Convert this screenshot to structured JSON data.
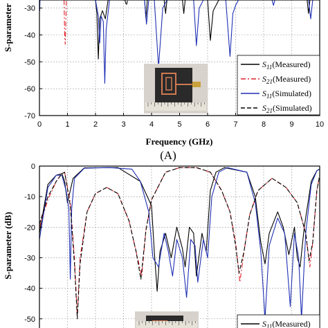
{
  "chart_data": [
    {
      "type": "line",
      "panel_label": "(A)",
      "xlabel": "Frequency (GHz)",
      "ylabel": "S-parameter",
      "xlim": [
        0,
        10
      ],
      "ylim": [
        -70,
        -27
      ],
      "xticks": [
        "0",
        "1",
        "2",
        "3",
        "4",
        "5",
        "6",
        "7",
        "8",
        "9",
        "10"
      ],
      "yticks": [
        {
          "v": -30,
          "label": "-30"
        },
        {
          "v": -40,
          "label": "-40"
        },
        {
          "v": -50,
          "label": "-50"
        },
        {
          "v": -60,
          "label": "-60"
        },
        {
          "v": -70,
          "label": "-70"
        }
      ],
      "grid": true,
      "legend_position": "bottom-right",
      "legend": [
        {
          "sym": "S",
          "sub": "11",
          "rest": "(Measured)",
          "color": "#000000",
          "dash": "solid"
        },
        {
          "sym": "S",
          "sub": "21",
          "rest": "(Measured)",
          "color": "#e0202a",
          "dash": "dashdot"
        },
        {
          "sym": "S",
          "sub": "11",
          "rest": "(Simulated)",
          "color": "#1e2fb3",
          "dash": "solid"
        },
        {
          "sym": "S",
          "sub": "21",
          "rest": "(Simulated)",
          "color": "#000000",
          "dash": "dash"
        }
      ],
      "series": [
        {
          "key": "s11m",
          "color": "#000000",
          "dash": "solid",
          "points": [
            [
              2.0,
              -27
            ],
            [
              2.05,
              -32
            ],
            [
              2.1,
              -49
            ],
            [
              2.15,
              -34
            ],
            [
              2.25,
              -31
            ],
            [
              2.35,
              -34
            ],
            [
              2.45,
              -27
            ],
            [
              3.75,
              -27
            ],
            [
              3.8,
              -34
            ],
            [
              3.85,
              -27
            ],
            [
              4.45,
              -27
            ],
            [
              4.5,
              -32
            ],
            [
              4.55,
              -27
            ],
            [
              5.1,
              -27
            ],
            [
              5.15,
              -32
            ],
            [
              5.2,
              -27
            ],
            [
              6.0,
              -27
            ],
            [
              6.1,
              -42
            ],
            [
              6.2,
              -31
            ],
            [
              6.4,
              -27
            ],
            [
              9.55,
              -27
            ],
            [
              9.6,
              -32
            ],
            [
              9.65,
              -27
            ]
          ]
        },
        {
          "key": "s21m",
          "color": "#e0202a",
          "dash": "dashdot",
          "points": [
            [
              0.88,
              -27
            ],
            [
              0.9,
              -40
            ],
            [
              0.92,
              -43.5
            ],
            [
              0.94,
              -36
            ],
            [
              0.96,
              -27
            ]
          ]
        },
        {
          "key": "s11s",
          "color": "#1e2fb3",
          "dash": "solid",
          "points": [
            [
              0.0,
              -27
            ],
            [
              0.01,
              -31
            ],
            [
              0.02,
              -27
            ],
            [
              2.0,
              -27
            ],
            [
              2.1,
              -33
            ],
            [
              2.15,
              -43
            ],
            [
              2.2,
              -33
            ],
            [
              2.28,
              -35
            ],
            [
              2.33,
              -58
            ],
            [
              2.38,
              -38
            ],
            [
              2.5,
              -27
            ],
            [
              3.75,
              -27
            ],
            [
              3.82,
              -36
            ],
            [
              3.9,
              -27
            ],
            [
              4.1,
              -27
            ],
            [
              4.25,
              -52
            ],
            [
              4.4,
              -30
            ],
            [
              4.55,
              -27
            ],
            [
              5.5,
              -27
            ],
            [
              5.6,
              -44
            ],
            [
              5.7,
              -30
            ],
            [
              5.85,
              -27
            ],
            [
              6.65,
              -27
            ],
            [
              6.8,
              -48
            ],
            [
              6.9,
              -32
            ],
            [
              7.0,
              -29
            ],
            [
              7.1,
              -27
            ],
            [
              8.3,
              -27
            ],
            [
              8.35,
              -29
            ],
            [
              8.4,
              -27
            ],
            [
              9.6,
              -27
            ],
            [
              9.68,
              -34
            ],
            [
              9.75,
              -27
            ]
          ]
        },
        {
          "key": "s21s",
          "color": "#000000",
          "dash": "dash",
          "points": [
            [
              3.05,
              -27
            ],
            [
              3.1,
              -29
            ],
            [
              3.15,
              -27
            ]
          ]
        }
      ],
      "inset": "photo"
    },
    {
      "type": "line",
      "ylabel": "S-parameter (dB)",
      "xlim": [
        0,
        10
      ],
      "ylim": [
        -53,
        0
      ],
      "yticks": [
        {
          "v": 0,
          "label": "0"
        },
        {
          "v": -10,
          "label": "-10"
        },
        {
          "v": -20,
          "label": "-20"
        },
        {
          "v": -30,
          "label": "-30"
        },
        {
          "v": -40,
          "label": "-40"
        },
        {
          "v": -50,
          "label": "-50"
        }
      ],
      "grid": true,
      "legend_position": "bottom-right",
      "legend": [
        {
          "sym": "S",
          "sub": "11",
          "rest": "(Measured)",
          "color": "#000000",
          "dash": "solid"
        }
      ],
      "series": [
        {
          "key": "s11m",
          "color": "#000000",
          "dash": "solid",
          "points": [
            [
              0,
              -22
            ],
            [
              0.3,
              -6
            ],
            [
              0.6,
              -3
            ],
            [
              0.8,
              -2.5
            ],
            [
              0.9,
              -5
            ],
            [
              1.0,
              -12
            ],
            [
              1.2,
              -4
            ],
            [
              1.6,
              -0.6
            ],
            [
              2.8,
              -0.5
            ],
            [
              3.6,
              -5
            ],
            [
              4.0,
              -13
            ],
            [
              4.1,
              -28
            ],
            [
              4.2,
              -41
            ],
            [
              4.3,
              -28
            ],
            [
              4.5,
              -22
            ],
            [
              4.7,
              -30
            ],
            [
              4.9,
              -20
            ],
            [
              5.1,
              -27
            ],
            [
              5.2,
              -33
            ],
            [
              5.35,
              -20
            ],
            [
              5.5,
              -22
            ],
            [
              5.6,
              -36
            ],
            [
              5.8,
              -22
            ],
            [
              5.95,
              -28
            ],
            [
              6.1,
              -8
            ],
            [
              6.3,
              -2
            ],
            [
              6.6,
              -0.5
            ],
            [
              7.4,
              -2
            ],
            [
              7.7,
              -10
            ],
            [
              7.9,
              -25
            ],
            [
              8.05,
              -32
            ],
            [
              8.2,
              -22
            ],
            [
              8.5,
              -15
            ],
            [
              8.7,
              -20
            ],
            [
              8.9,
              -29
            ],
            [
              9.1,
              -20
            ],
            [
              9.2,
              -30
            ],
            [
              9.3,
              -33
            ],
            [
              9.45,
              -20
            ],
            [
              9.7,
              -5
            ],
            [
              9.9,
              -1.5
            ],
            [
              10,
              -1
            ]
          ]
        },
        {
          "key": "s21m",
          "color": "#e0202a",
          "dash": "dashdot",
          "points": [
            [
              0,
              -20
            ],
            [
              0.3,
              -11
            ],
            [
              0.6,
              -5
            ],
            [
              0.8,
              -2.5
            ],
            [
              0.9,
              -2
            ],
            [
              1.1,
              -12
            ],
            [
              1.25,
              -30
            ],
            [
              1.35,
              -49
            ],
            [
              1.45,
              -30
            ],
            [
              1.7,
              -15
            ],
            [
              2.0,
              -9
            ],
            [
              2.4,
              -7
            ],
            [
              2.8,
              -9
            ],
            [
              3.2,
              -18
            ],
            [
              3.45,
              -28
            ],
            [
              3.65,
              -36
            ],
            [
              3.8,
              -21
            ],
            [
              4.0,
              -11
            ],
            [
              4.5,
              -2
            ],
            [
              5.0,
              -0.5
            ],
            [
              5.6,
              -0.5
            ],
            [
              6.1,
              -2
            ],
            [
              6.5,
              -8
            ],
            [
              6.8,
              -15
            ],
            [
              7.0,
              -25
            ],
            [
              7.15,
              -38
            ],
            [
              7.3,
              -28
            ],
            [
              7.5,
              -16
            ],
            [
              7.8,
              -8
            ],
            [
              8.3,
              -4
            ],
            [
              8.8,
              -7
            ],
            [
              9.2,
              -12
            ],
            [
              9.5,
              -22
            ],
            [
              9.65,
              -33
            ],
            [
              9.75,
              -25
            ],
            [
              9.9,
              -8
            ],
            [
              10,
              -3
            ]
          ]
        },
        {
          "key": "s11s",
          "color": "#1e2fb3",
          "dash": "solid",
          "points": [
            [
              0,
              -24
            ],
            [
              0.3,
              -7
            ],
            [
              0.6,
              -3
            ],
            [
              0.8,
              -3
            ],
            [
              0.95,
              -8
            ],
            [
              1.05,
              -14
            ],
            [
              1.1,
              -37
            ],
            [
              1.15,
              -14
            ],
            [
              1.25,
              -4
            ],
            [
              1.6,
              -0.7
            ],
            [
              2.5,
              -0.5
            ],
            [
              3.3,
              -1
            ],
            [
              3.6,
              -5
            ],
            [
              3.9,
              -15
            ],
            [
              4.05,
              -30
            ],
            [
              4.25,
              -33
            ],
            [
              4.45,
              -22
            ],
            [
              4.6,
              -28
            ],
            [
              4.75,
              -36
            ],
            [
              4.9,
              -24
            ],
            [
              5.1,
              -30
            ],
            [
              5.25,
              -43
            ],
            [
              5.4,
              -24
            ],
            [
              5.55,
              -26
            ],
            [
              5.65,
              -38
            ],
            [
              5.85,
              -24
            ],
            [
              6.0,
              -30
            ],
            [
              6.15,
              -10
            ],
            [
              6.4,
              -2
            ],
            [
              6.7,
              -0.5
            ],
            [
              7.4,
              -2
            ],
            [
              7.7,
              -12
            ],
            [
              7.9,
              -28
            ],
            [
              8.05,
              -50
            ],
            [
              8.2,
              -26
            ],
            [
              8.5,
              -17
            ],
            [
              8.75,
              -22
            ],
            [
              8.95,
              -46
            ],
            [
              9.1,
              -22
            ],
            [
              9.25,
              -30
            ],
            [
              9.35,
              -50
            ],
            [
              9.5,
              -22
            ],
            [
              9.7,
              -6
            ],
            [
              9.9,
              -1.5
            ],
            [
              10,
              -1
            ]
          ]
        },
        {
          "key": "s21s",
          "color": "#000000",
          "dash": "dash",
          "points": [
            [
              0,
              -19
            ],
            [
              0.3,
              -10
            ],
            [
              0.6,
              -5
            ],
            [
              0.8,
              -2.5
            ],
            [
              0.9,
              -2
            ],
            [
              1.1,
              -13
            ],
            [
              1.25,
              -32
            ],
            [
              1.35,
              -50
            ],
            [
              1.45,
              -32
            ],
            [
              1.7,
              -15
            ],
            [
              2.0,
              -9
            ],
            [
              2.4,
              -7
            ],
            [
              2.8,
              -9
            ],
            [
              3.2,
              -18
            ],
            [
              3.45,
              -28
            ],
            [
              3.62,
              -37
            ],
            [
              3.8,
              -21
            ],
            [
              4.0,
              -11
            ],
            [
              4.5,
              -2
            ],
            [
              5.0,
              -0.5
            ],
            [
              5.6,
              -0.5
            ],
            [
              6.1,
              -2
            ],
            [
              6.5,
              -8
            ],
            [
              6.8,
              -15
            ],
            [
              7.0,
              -26
            ],
            [
              7.12,
              -35
            ],
            [
              7.3,
              -28
            ],
            [
              7.5,
              -16
            ],
            [
              7.8,
              -8
            ],
            [
              8.3,
              -4
            ],
            [
              8.8,
              -7
            ],
            [
              9.2,
              -12
            ],
            [
              9.5,
              -22
            ],
            [
              9.62,
              -31
            ],
            [
              9.75,
              -25
            ],
            [
              9.9,
              -8
            ],
            [
              10,
              -3
            ]
          ]
        }
      ],
      "inset": "photo"
    }
  ]
}
